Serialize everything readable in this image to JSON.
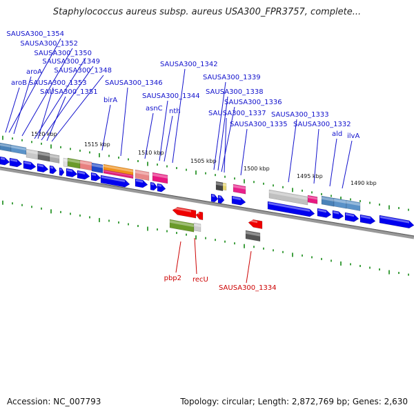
{
  "title": "Staphylococcus aureus subsp. aureus USA300_FPR3757, complete...",
  "footer": {
    "accession": "Accession: NC_007793",
    "summary": "Topology: circular; Length: 2,872,769 bp; Genes: 2,630"
  },
  "colors": {
    "forward_label": "#1010cc",
    "reverse_label": "#cc0000",
    "forward_gene": "#0000ee",
    "reverse_gene": "#ee0000",
    "tick": "#118811",
    "backbone": "#777777"
  },
  "scale_ticks": [
    "1520 kbp",
    "1515 kbp",
    "1510 kbp",
    "1505 kbp",
    "1500 kbp",
    "1495 kbp",
    "1490 kbp"
  ],
  "forward_labels": [
    "SAUSA300_1354",
    "SAUSA300_1352",
    "SAUSA300_1350",
    "SAUSA300_1349",
    "SAUSA300_1348",
    "aroA",
    "aroB",
    "SAUSA300_1353",
    "SAUSA300_1351",
    "SAUSA300_1346",
    "birA",
    "SAUSA300_1342",
    "SAUSA300_1344",
    "asnC",
    "nth",
    "SAUSA300_1339",
    "SAUSA300_1338",
    "SAUSA300_1336",
    "SAUSA300_1337",
    "SAUSA300_1335",
    "SAUSA300_1333",
    "SAUSA300_1332",
    "ald",
    "ilvA"
  ],
  "reverse_labels": [
    "pbp2",
    "recU",
    "SAUSA300_1334"
  ]
}
